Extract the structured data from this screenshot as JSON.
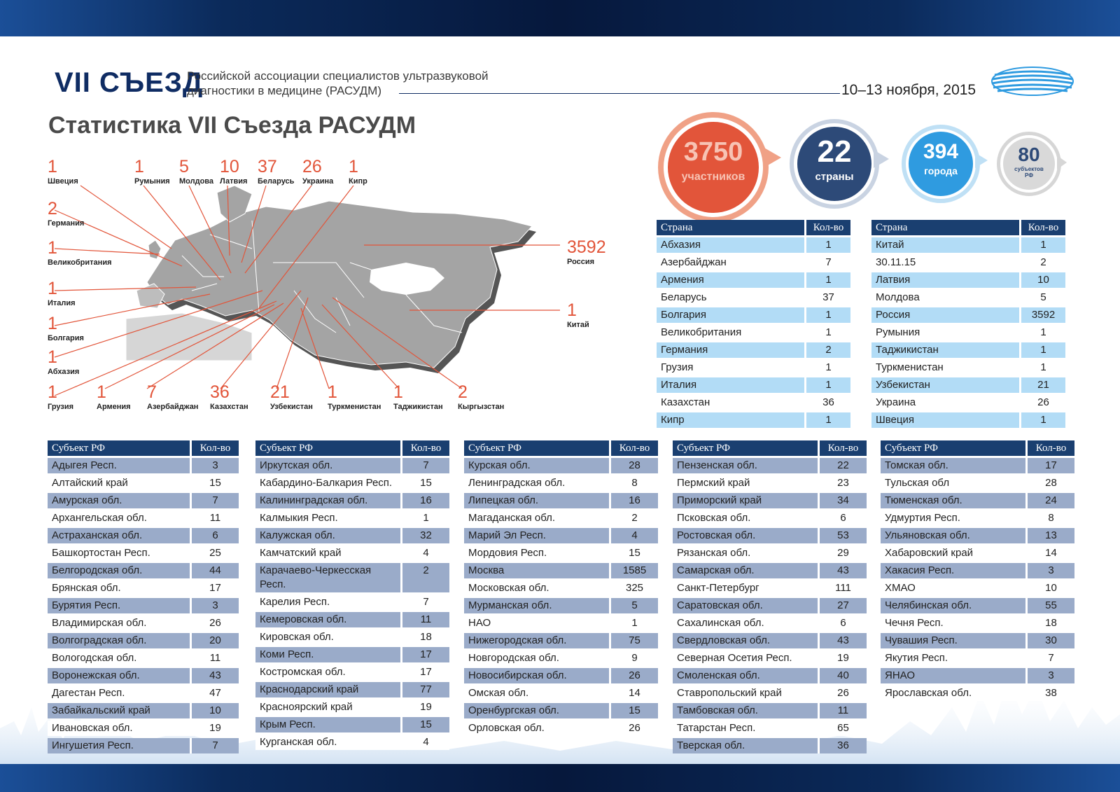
{
  "header": {
    "congress": "VII СЪЕЗД",
    "subtitle": "Российской ассоциации специалистов ультразвуковой диагностики в медицине (РАСУДМ)",
    "date": "10–13 ноября, 2015"
  },
  "page_title": "Статистика VII Съезда РАСУДМ",
  "summary": {
    "participants": {
      "value": "3750",
      "label": "участников"
    },
    "countries": {
      "value": "22",
      "label": "страны"
    },
    "cities": {
      "value": "394",
      "label": "города"
    },
    "subjects": {
      "value": "80",
      "label": "субъектов РФ"
    }
  },
  "map_markers": [
    {
      "value": "1",
      "name": "Швеция"
    },
    {
      "value": "1",
      "name": "Румыния"
    },
    {
      "value": "5",
      "name": "Молдова"
    },
    {
      "value": "10",
      "name": "Латвия"
    },
    {
      "value": "37",
      "name": "Беларусь"
    },
    {
      "value": "26",
      "name": "Украина"
    },
    {
      "value": "1",
      "name": "Кипр"
    },
    {
      "value": "2",
      "name": "Германия"
    },
    {
      "value": "1",
      "name": "Великобритания"
    },
    {
      "value": "1",
      "name": "Италия"
    },
    {
      "value": "1",
      "name": "Болгария"
    },
    {
      "value": "1",
      "name": "Абхазия"
    },
    {
      "value": "1",
      "name": "Грузия"
    },
    {
      "value": "1",
      "name": "Армения"
    },
    {
      "value": "7",
      "name": "Азербайджан"
    },
    {
      "value": "36",
      "name": "Казахстан"
    },
    {
      "value": "21",
      "name": "Узбекистан"
    },
    {
      "value": "1",
      "name": "Туркменистан"
    },
    {
      "value": "1",
      "name": "Таджикистан"
    },
    {
      "value": "2",
      "name": "Кыргызстан"
    },
    {
      "value": "3592",
      "name": "Россия"
    },
    {
      "value": "1",
      "name": "Китай"
    }
  ],
  "country_headers": {
    "name": "Страна",
    "count": "Кол-во"
  },
  "country_table_1": [
    [
      "Абхазия",
      "1"
    ],
    [
      "Азербайджан",
      "7"
    ],
    [
      "Армения",
      "1"
    ],
    [
      "Беларусь",
      "37"
    ],
    [
      "Болгария",
      "1"
    ],
    [
      "Великобритания",
      "1"
    ],
    [
      "Германия",
      "2"
    ],
    [
      "Грузия",
      "1"
    ],
    [
      "Италия",
      "1"
    ],
    [
      "Казахстан",
      "36"
    ],
    [
      "Кипр",
      "1"
    ]
  ],
  "country_table_2": [
    [
      "Китай",
      "1"
    ],
    [
      "30.11.15",
      "2"
    ],
    [
      "Латвия",
      "10"
    ],
    [
      "Молдова",
      "5"
    ],
    [
      "Россия",
      "3592"
    ],
    [
      "Румыния",
      "1"
    ],
    [
      "Таджикистан",
      "1"
    ],
    [
      "Туркменистан",
      "1"
    ],
    [
      "Узбекистан",
      "21"
    ],
    [
      "Украина",
      "26"
    ],
    [
      "Швеция",
      "1"
    ]
  ],
  "subject_headers": {
    "name": "Субъект РФ",
    "count": "Кол-во"
  },
  "subject_tables": [
    [
      [
        "Адыгея Респ.",
        "3"
      ],
      [
        "Алтайский край",
        "15"
      ],
      [
        "Амурская обл.",
        "7"
      ],
      [
        "Архангельская обл.",
        "11"
      ],
      [
        "Астраханская обл.",
        "6"
      ],
      [
        "Башкортостан Респ.",
        "25"
      ],
      [
        "Белгородская обл.",
        "44"
      ],
      [
        "Брянская обл.",
        "17"
      ],
      [
        "Бурятия Респ.",
        "3"
      ],
      [
        "Владимирская обл.",
        "26"
      ],
      [
        "Волгоградская обл.",
        "20"
      ],
      [
        "Вологодская обл.",
        "11"
      ],
      [
        "Воронежская обл.",
        "43"
      ],
      [
        "Дагестан Респ.",
        "47"
      ],
      [
        "Забайкальский край",
        "10"
      ],
      [
        "Ивановская обл.",
        "19"
      ],
      [
        "Ингушетия Респ.",
        "7"
      ]
    ],
    [
      [
        "Иркутская обл.",
        "7"
      ],
      [
        "Кабардино-Балкария Респ.",
        "15"
      ],
      [
        "Калининградская обл.",
        "16"
      ],
      [
        "Калмыкия Респ.",
        "1"
      ],
      [
        "Калужская обл.",
        "32"
      ],
      [
        "Камчатский край",
        "4"
      ],
      [
        "Карачаево-Черкесская Респ.",
        "2"
      ],
      [
        "Карелия Респ.",
        "7"
      ],
      [
        "Кемеровская обл.",
        "11"
      ],
      [
        "Кировская обл.",
        "18"
      ],
      [
        "Коми Респ.",
        "17"
      ],
      [
        "Костромская обл.",
        "17"
      ],
      [
        "Краснодарский край",
        "77"
      ],
      [
        "Красноярский край",
        "19"
      ],
      [
        "Крым Респ.",
        "15"
      ],
      [
        "Курганская обл.",
        "4"
      ]
    ],
    [
      [
        "Курская обл.",
        "28"
      ],
      [
        "Ленинградская обл.",
        "8"
      ],
      [
        "Липецкая обл.",
        "16"
      ],
      [
        "Магаданская обл.",
        "2"
      ],
      [
        "Марий Эл Респ.",
        "4"
      ],
      [
        "Мордовия Респ.",
        "15"
      ],
      [
        "Москва",
        "1585"
      ],
      [
        "Московская обл.",
        "325"
      ],
      [
        "Мурманская обл.",
        "5"
      ],
      [
        "НАО",
        "1"
      ],
      [
        "Нижегородская  обл.",
        "75"
      ],
      [
        "Новгородская обл.",
        "9"
      ],
      [
        "Новосибирская обл.",
        "26"
      ],
      [
        "Омская обл.",
        "14"
      ],
      [
        "Оренбургская обл.",
        "15"
      ],
      [
        "Орловская обл.",
        "26"
      ]
    ],
    [
      [
        "Пензенская обл.",
        "22"
      ],
      [
        "Пермский край",
        "23"
      ],
      [
        "Приморский край",
        "34"
      ],
      [
        "Псковская обл.",
        "6"
      ],
      [
        "Ростовская обл.",
        "53"
      ],
      [
        "Рязанская обл.",
        "29"
      ],
      [
        "Самарская обл.",
        "43"
      ],
      [
        "Санкт-Петербург",
        "111"
      ],
      [
        "Саратовская обл.",
        "27"
      ],
      [
        "Сахалинская обл.",
        "6"
      ],
      [
        "Свердловская обл.",
        "43"
      ],
      [
        "Северная Осетия Респ.",
        "19"
      ],
      [
        "Смоленская обл.",
        "40"
      ],
      [
        "Ставропольский край",
        "26"
      ],
      [
        "Тамбовская обл.",
        "11"
      ],
      [
        "Татарстан Респ.",
        "65"
      ],
      [
        "Тверская обл.",
        "36"
      ]
    ],
    [
      [
        "Томская обл.",
        "17"
      ],
      [
        "Тульская обл",
        "28"
      ],
      [
        "Тюменская обл.",
        "24"
      ],
      [
        "Удмуртия Респ.",
        "8"
      ],
      [
        "Ульяновская обл.",
        "13"
      ],
      [
        "Хабаровский край",
        "14"
      ],
      [
        "Хакасия Респ.",
        "3"
      ],
      [
        "ХМАО",
        "10"
      ],
      [
        "Челябинская обл.",
        "55"
      ],
      [
        "Чечня Респ.",
        "18"
      ],
      [
        "Чувашия Респ.",
        "30"
      ],
      [
        "Якутия Респ.",
        "7"
      ],
      [
        "ЯНАО",
        "3"
      ],
      [
        "Ярославская обл.",
        "38"
      ]
    ]
  ],
  "colors": {
    "navy": "#0f2c63",
    "table_header": "#1a3f70",
    "country_row": "#b2dcf6",
    "subject_row": "#9aabc9",
    "accent_orange": "#e2553a",
    "circle_blue": "#2f9be0",
    "circle_dark": "#2d4a78",
    "circle_gray": "#8c8c8c"
  }
}
